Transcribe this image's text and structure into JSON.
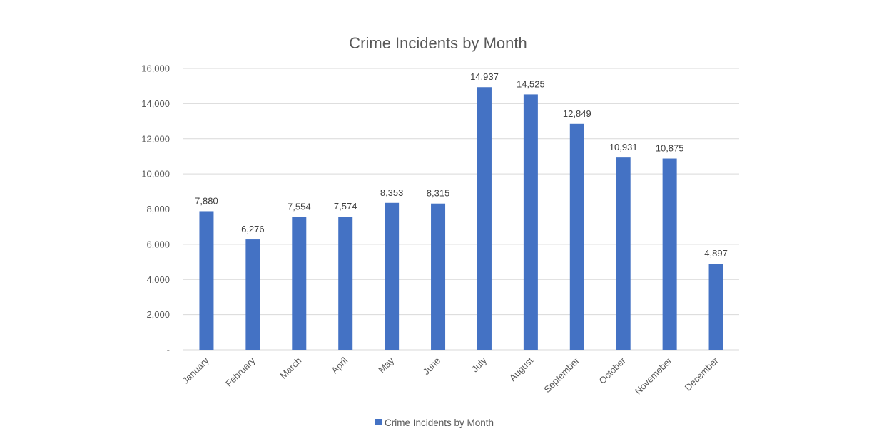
{
  "chart_data": {
    "type": "bar",
    "title": "Crime Incidents by Month",
    "xlabel": "",
    "ylabel": "",
    "categories": [
      "January",
      "February",
      "March",
      "April",
      "May",
      "June",
      "July",
      "August",
      "September",
      "October",
      "Novemeber",
      "December"
    ],
    "series": [
      {
        "name": "Crime Incidents by Month",
        "values": [
          7880,
          6276,
          7554,
          7574,
          8353,
          8315,
          14937,
          14525,
          12849,
          10931,
          10875,
          4897
        ],
        "color": "#4472C4"
      }
    ],
    "data_labels": [
      "7,880",
      "6,276",
      "7,554",
      "7,574",
      "8,353",
      "8,315",
      "14,937",
      "14,525",
      "12,849",
      "10,931",
      "10,875",
      "4,897"
    ],
    "ylim": [
      0,
      16000
    ],
    "y_ticks": [
      0,
      2000,
      4000,
      6000,
      8000,
      10000,
      12000,
      14000,
      16000
    ],
    "y_tick_labels": [
      "-",
      "2,000",
      "4,000",
      "6,000",
      "8,000",
      "10,000",
      "12,000",
      "14,000",
      "16,000"
    ],
    "grid": true,
    "legend_position": "bottom",
    "legend_label": "Crime Incidents by Month"
  }
}
